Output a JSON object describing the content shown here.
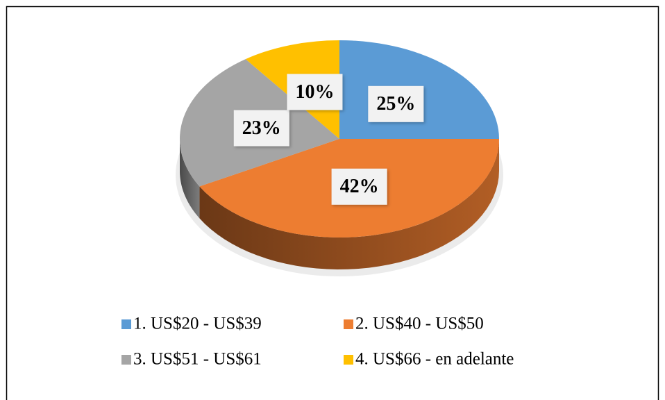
{
  "chart_data": {
    "type": "pie",
    "categories": [
      "1. US$20 - US$39",
      "2. US$40 - US$50",
      "3. US$51 - US$61",
      "4. US$66 - en adelante"
    ],
    "values": [
      25,
      42,
      23,
      10
    ],
    "value_labels": [
      "25%",
      "42%",
      "23%",
      "10%"
    ],
    "colors": [
      "#5b9bd5",
      "#ed7d31",
      "#a5a5a5",
      "#ffc000"
    ],
    "legend": "bottom"
  }
}
